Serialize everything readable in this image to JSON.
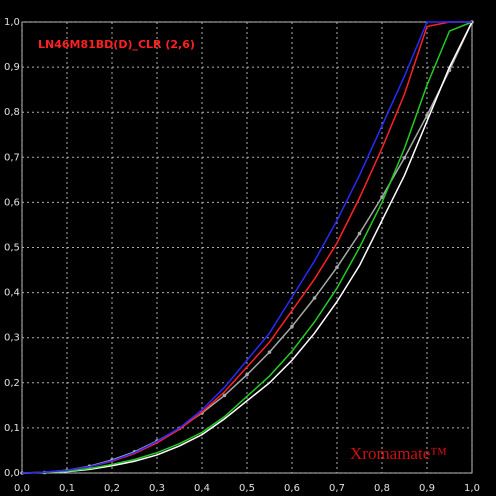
{
  "chart_data": {
    "type": "line",
    "title": "LN46M81BD(D)_CLR (2,6)",
    "watermark": "Xromamate™",
    "x": [
      0,
      0.05,
      0.1,
      0.15,
      0.2,
      0.25,
      0.3,
      0.35,
      0.4,
      0.45,
      0.5,
      0.55,
      0.6,
      0.65,
      0.7,
      0.75,
      0.8,
      0.85,
      0.9,
      0.95,
      1
    ],
    "series": [
      {
        "color": "#a8a8a8",
        "markers": true,
        "values": [
          0,
          0.001,
          0.006,
          0.015,
          0.029,
          0.047,
          0.071,
          0.099,
          0.133,
          0.172,
          0.218,
          0.268,
          0.325,
          0.388,
          0.456,
          0.531,
          0.612,
          0.699,
          0.793,
          0.893,
          1
        ]
      },
      {
        "color": "#ffffff",
        "markers": false,
        "values": [
          0,
          0.001,
          0.003,
          0.008,
          0.016,
          0.026,
          0.04,
          0.06,
          0.085,
          0.12,
          0.16,
          0.2,
          0.25,
          0.31,
          0.38,
          0.46,
          0.56,
          0.66,
          0.78,
          0.9,
          1
        ]
      },
      {
        "color": "#22cc22",
        "markers": false,
        "values": [
          0,
          0.001,
          0.004,
          0.01,
          0.019,
          0.03,
          0.045,
          0.065,
          0.09,
          0.125,
          0.17,
          0.215,
          0.27,
          0.335,
          0.41,
          0.5,
          0.6,
          0.72,
          0.86,
          0.98,
          1
        ]
      },
      {
        "color": "#ff2222",
        "markers": false,
        "values": [
          0,
          0.002,
          0.006,
          0.014,
          0.026,
          0.043,
          0.067,
          0.097,
          0.135,
          0.18,
          0.235,
          0.29,
          0.36,
          0.43,
          0.51,
          0.61,
          0.72,
          0.84,
          0.99,
          1,
          1
        ]
      },
      {
        "color": "#2a2aff",
        "markers": false,
        "values": [
          0,
          0.002,
          0.006,
          0.014,
          0.027,
          0.045,
          0.07,
          0.1,
          0.14,
          0.19,
          0.25,
          0.31,
          0.39,
          0.47,
          0.56,
          0.66,
          0.77,
          0.88,
          1,
          1,
          1
        ]
      }
    ],
    "xlim": [
      0,
      1
    ],
    "ylim": [
      0,
      1
    ],
    "xticks": [
      {
        "value": 0,
        "label": "0,0"
      },
      {
        "value": 0.1,
        "label": "0,1"
      },
      {
        "value": 0.2,
        "label": "0,2"
      },
      {
        "value": 0.3,
        "label": "0,3"
      },
      {
        "value": 0.4,
        "label": "0,4"
      },
      {
        "value": 0.5,
        "label": "0,5"
      },
      {
        "value": 0.6,
        "label": "0,6"
      },
      {
        "value": 0.7,
        "label": "0,7"
      },
      {
        "value": 0.8,
        "label": "0,8"
      },
      {
        "value": 0.9,
        "label": "0,9"
      },
      {
        "value": 1,
        "label": "1,0"
      }
    ],
    "yticks": [
      {
        "value": 0,
        "label": "0,0"
      },
      {
        "value": 0.1,
        "label": "0,1"
      },
      {
        "value": 0.2,
        "label": "0,2"
      },
      {
        "value": 0.3,
        "label": "0,3"
      },
      {
        "value": 0.4,
        "label": "0,4"
      },
      {
        "value": 0.5,
        "label": "0,5"
      },
      {
        "value": 0.6,
        "label": "0,6"
      },
      {
        "value": 0.7,
        "label": "0,7"
      },
      {
        "value": 0.8,
        "label": "0,8"
      },
      {
        "value": 0.9,
        "label": "0,9"
      },
      {
        "value": 1,
        "label": "1,0"
      }
    ],
    "grid": true
  }
}
